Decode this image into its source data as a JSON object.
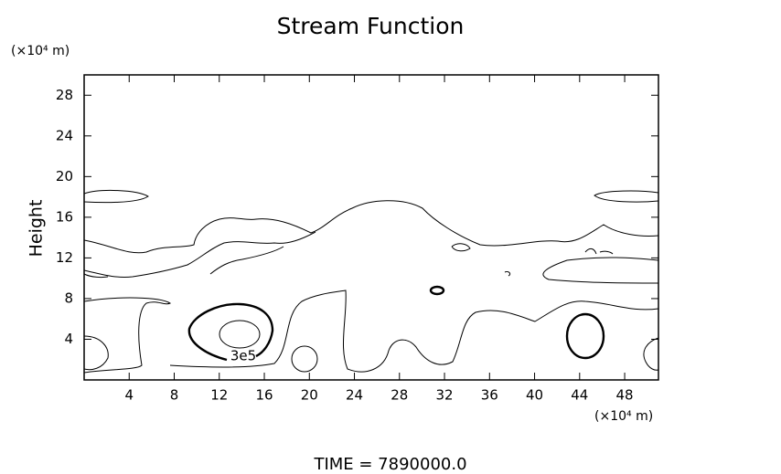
{
  "chart_data": {
    "type": "contour",
    "title": "Stream Function",
    "y_label": "Height",
    "y_unit": "(×10⁴ m)",
    "x_unit": "(×10⁴ m)",
    "xlim": [
      0,
      51
    ],
    "ylim": [
      0,
      30
    ],
    "xticks": [
      4,
      8,
      12,
      16,
      20,
      24,
      28,
      32,
      36,
      40,
      44,
      48
    ],
    "yticks": [
      4,
      8,
      12,
      16,
      20,
      24,
      28
    ],
    "annotations": [
      "3e5"
    ],
    "footer": "TIME  =  7890000.0"
  }
}
